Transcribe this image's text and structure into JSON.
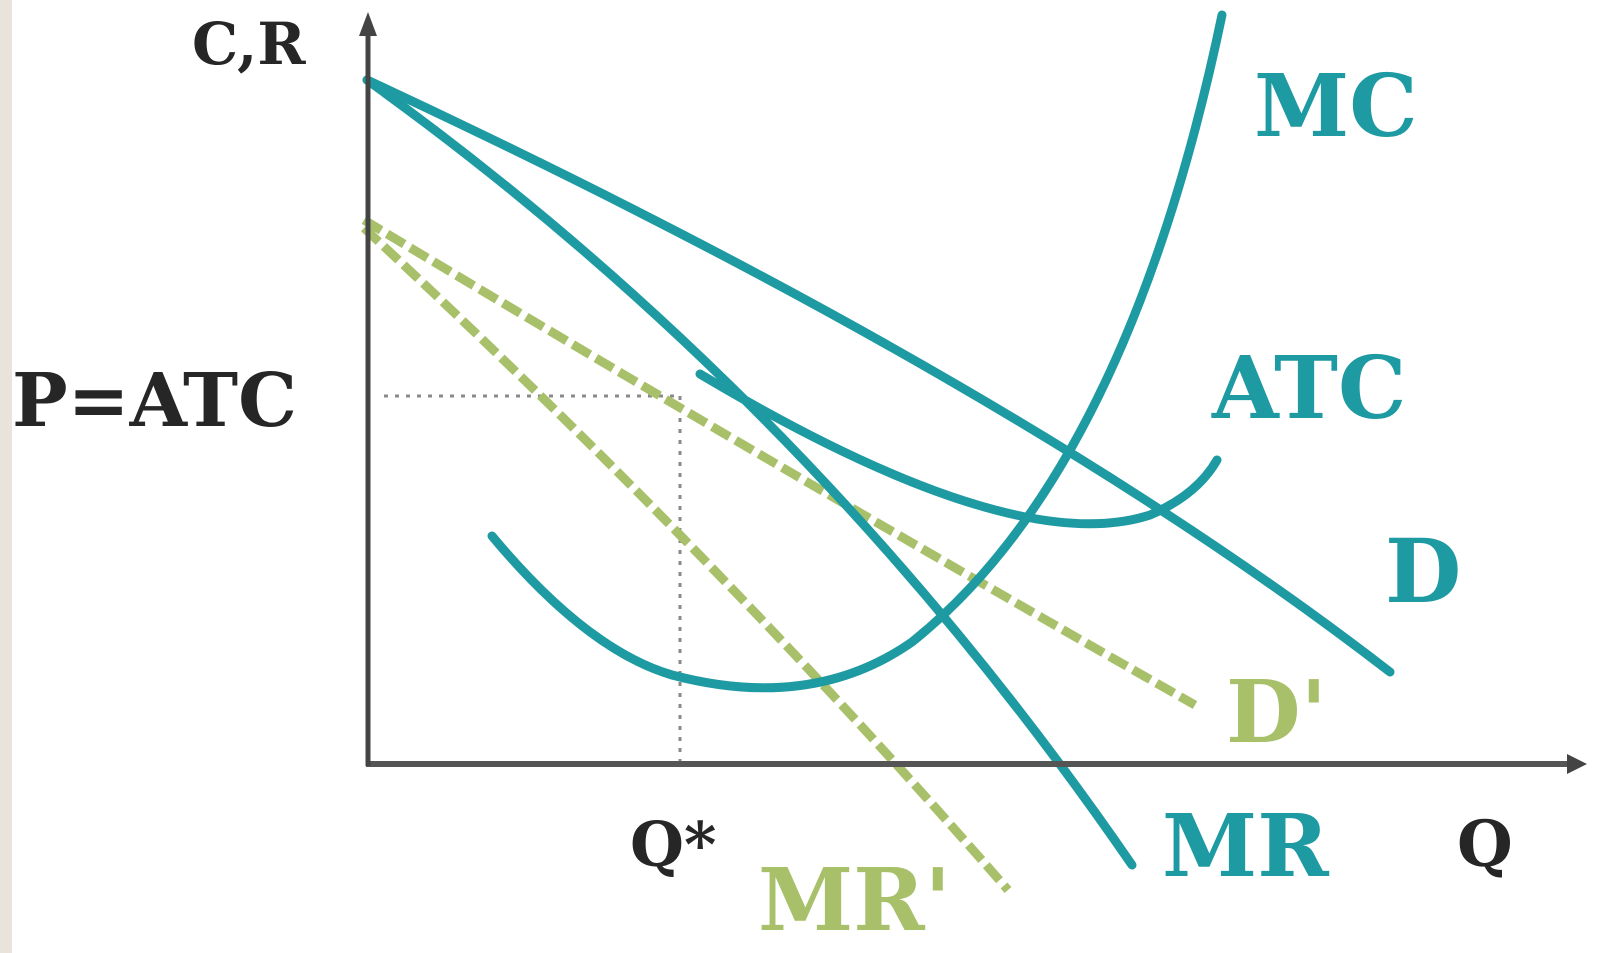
{
  "axes": {
    "y_label": "C,R",
    "x_label": "Q"
  },
  "annotations": {
    "price_level": "P=ATC",
    "quantity": "Q*"
  },
  "curves": [
    {
      "key": "mc",
      "label": "MC",
      "color": "#1e9aa2",
      "style": "solid"
    },
    {
      "key": "atc",
      "label": "ATC",
      "color": "#1e9aa2",
      "style": "solid"
    },
    {
      "key": "d",
      "label": "D",
      "color": "#1e9aa2",
      "style": "solid"
    },
    {
      "key": "mr",
      "label": "MR",
      "color": "#1e9aa2",
      "style": "solid"
    },
    {
      "key": "d_prime",
      "label": "D'",
      "color": "#a8c06a",
      "style": "dashed"
    },
    {
      "key": "mr_prime",
      "label": "MR'",
      "color": "#a8c06a",
      "style": "dashed"
    }
  ],
  "colors": {
    "axis": "#555555",
    "teal": "#1e9aa2",
    "green": "#a8c06a",
    "guide": "#8a8a8a"
  }
}
